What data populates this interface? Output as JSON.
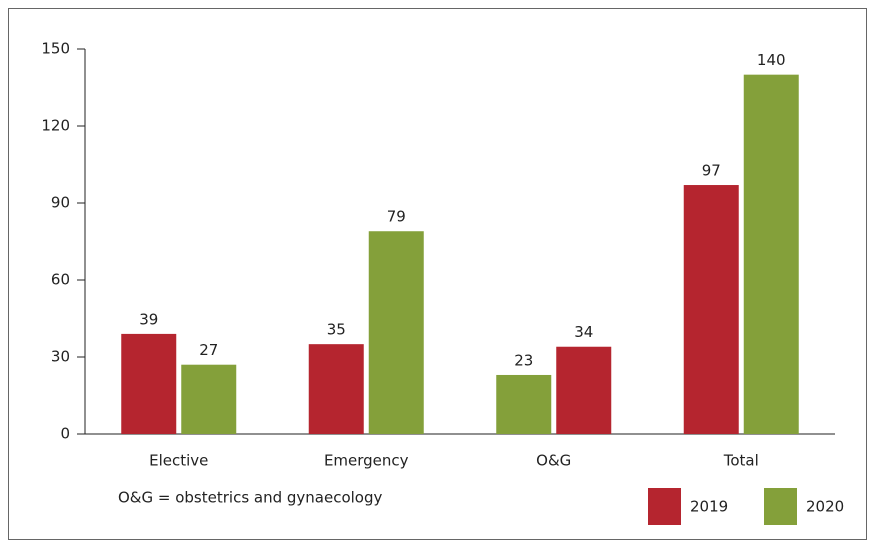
{
  "chart_data": {
    "type": "bar",
    "categories": [
      "Elective",
      "Emergency",
      "O&G",
      "Total"
    ],
    "series": [
      {
        "name": "2019",
        "color": "#b5252f",
        "colors": [
          "#b5252f",
          "#b5252f",
          "#84a03a",
          "#b5252f"
        ],
        "values": [
          39,
          35,
          23,
          97
        ]
      },
      {
        "name": "2020",
        "color": "#84a03a",
        "colors": [
          "#84a03a",
          "#84a03a",
          "#b5252f",
          "#84a03a"
        ],
        "values": [
          27,
          79,
          34,
          140
        ]
      }
    ],
    "ylim": [
      0,
      150
    ],
    "yticks": [
      0,
      30,
      60,
      90,
      120,
      150
    ],
    "annotation": "O&G = obstetrics and gynaecology",
    "legend": "bottom-right"
  }
}
